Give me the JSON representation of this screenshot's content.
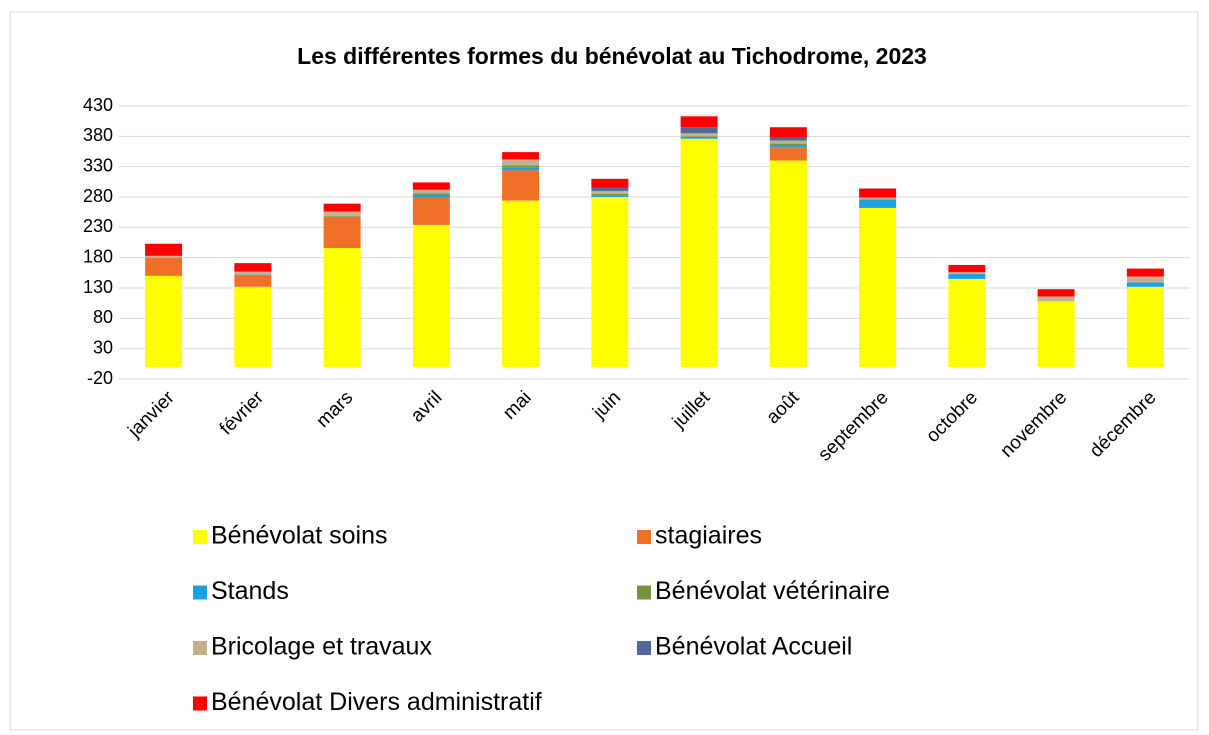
{
  "chart_data": {
    "type": "stacked_bar",
    "title": "Les différentes formes du bénévolat au Tichodrome, 2023",
    "categories": [
      "janvier",
      "février",
      "mars",
      "avril",
      "mai",
      "juin",
      "juillet",
      "août",
      "septembre",
      "octobre",
      "novembre",
      "décembre"
    ],
    "series": [
      {
        "name": "Bénévolat soins",
        "color": "#ffff00",
        "values": [
          150,
          132,
          196,
          234,
          274,
          280,
          376,
          340,
          262,
          145,
          108,
          132
        ]
      },
      {
        "name": "stagiaires",
        "color": "#f07028",
        "values": [
          30,
          18,
          50,
          45,
          50,
          0,
          0,
          22,
          0,
          0,
          0,
          0
        ]
      },
      {
        "name": "Stands",
        "color": "#1ba1e2",
        "values": [
          0,
          2,
          0,
          5,
          5,
          3,
          2,
          3,
          14,
          8,
          0,
          7
        ]
      },
      {
        "name": "Bénévolat vétérinaire",
        "color": "#77933c",
        "values": [
          0,
          0,
          2,
          2,
          3,
          2,
          2,
          3,
          0,
          0,
          0,
          0
        ]
      },
      {
        "name": "Bricolage et travaux",
        "color": "#c4b28f",
        "values": [
          3,
          5,
          8,
          6,
          10,
          5,
          5,
          5,
          3,
          3,
          8,
          10
        ]
      },
      {
        "name": "Bénévolat Accueil",
        "color": "#4f6a9a",
        "values": [
          0,
          0,
          0,
          0,
          0,
          5,
          10,
          5,
          0,
          0,
          0,
          0
        ]
      },
      {
        "name": "Bénévolat Divers administratif",
        "color": "#ff0000",
        "values": [
          20,
          14,
          13,
          12,
          12,
          15,
          18,
          17,
          15,
          12,
          12,
          13
        ]
      }
    ],
    "ylim": [
      -20,
      430
    ],
    "yticks": [
      -20,
      30,
      80,
      130,
      180,
      230,
      280,
      330,
      380,
      430
    ],
    "grid": true
  }
}
